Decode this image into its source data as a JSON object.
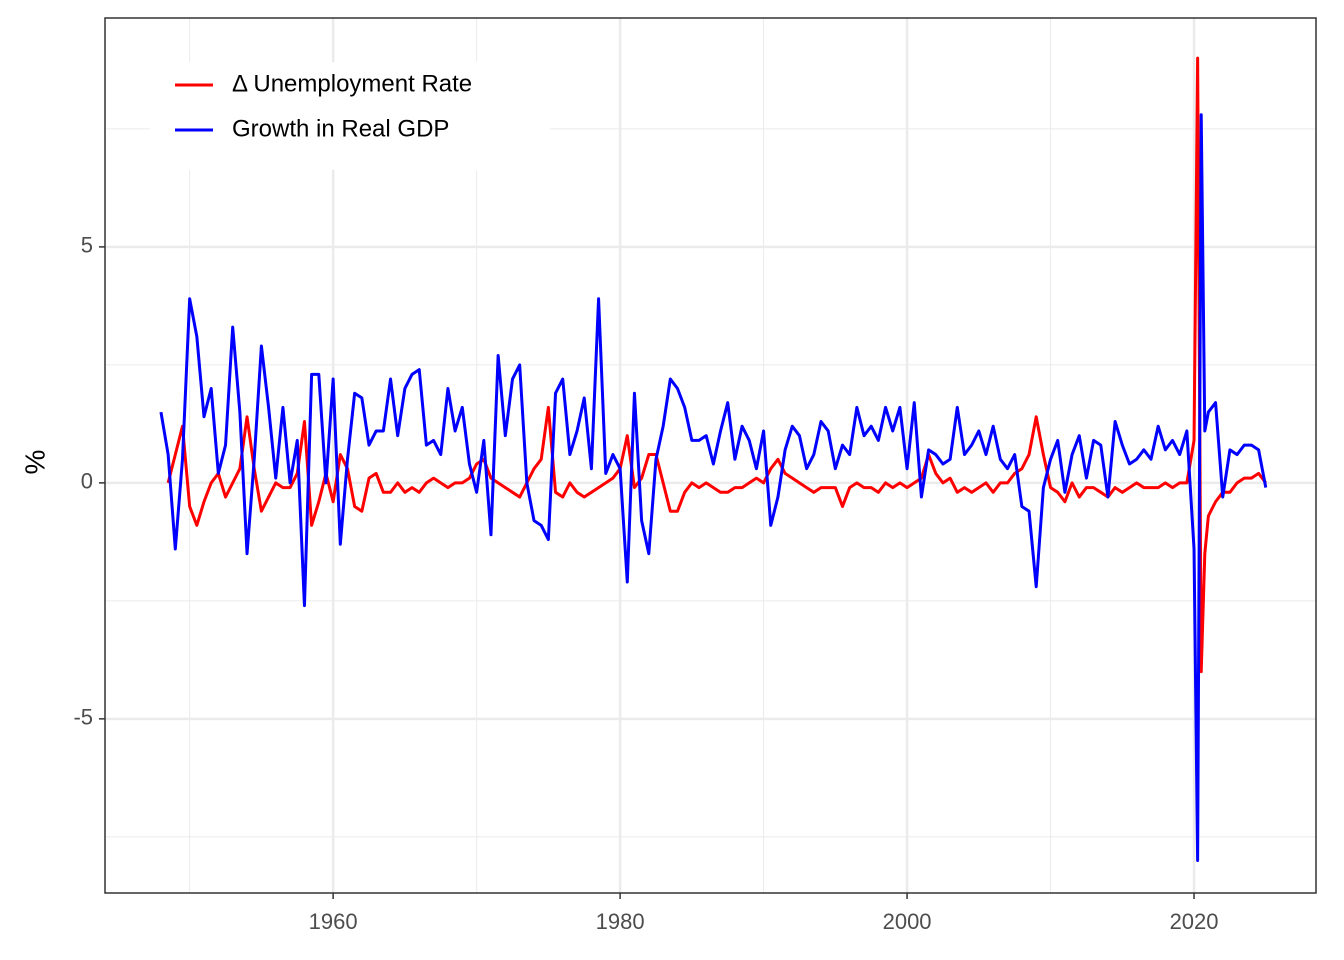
{
  "chart_data": {
    "type": "line",
    "ylabel": "%",
    "x": [
      1948.0,
      1948.5,
      1949.0,
      1949.5,
      1950.0,
      1950.5,
      1951.0,
      1951.5,
      1952.0,
      1952.5,
      1953.0,
      1953.5,
      1954.0,
      1954.5,
      1955.0,
      1955.5,
      1956.0,
      1956.5,
      1957.0,
      1957.5,
      1958.0,
      1958.5,
      1959.0,
      1959.5,
      1960.0,
      1960.5,
      1961.0,
      1961.5,
      1962.0,
      1962.5,
      1963.0,
      1963.5,
      1964.0,
      1964.5,
      1965.0,
      1965.5,
      1966.0,
      1966.5,
      1967.0,
      1967.5,
      1968.0,
      1968.5,
      1969.0,
      1969.5,
      1970.0,
      1970.5,
      1971.0,
      1971.5,
      1972.0,
      1972.5,
      1973.0,
      1973.5,
      1974.0,
      1974.5,
      1975.0,
      1975.5,
      1976.0,
      1976.5,
      1977.0,
      1977.5,
      1978.0,
      1978.5,
      1979.0,
      1979.5,
      1980.0,
      1980.5,
      1981.0,
      1981.5,
      1982.0,
      1982.5,
      1983.0,
      1983.5,
      1984.0,
      1984.5,
      1985.0,
      1985.5,
      1986.0,
      1986.5,
      1987.0,
      1987.5,
      1988.0,
      1988.5,
      1989.0,
      1989.5,
      1990.0,
      1990.5,
      1991.0,
      1991.5,
      1992.0,
      1992.5,
      1993.0,
      1993.5,
      1994.0,
      1994.5,
      1995.0,
      1995.5,
      1996.0,
      1996.5,
      1997.0,
      1997.5,
      1998.0,
      1998.5,
      1999.0,
      1999.5,
      2000.0,
      2000.5,
      2001.0,
      2001.5,
      2002.0,
      2002.5,
      2003.0,
      2003.5,
      2004.0,
      2004.5,
      2005.0,
      2005.5,
      2006.0,
      2006.5,
      2007.0,
      2007.5,
      2008.0,
      2008.5,
      2009.0,
      2009.5,
      2010.0,
      2010.5,
      2011.0,
      2011.5,
      2012.0,
      2012.5,
      2013.0,
      2013.5,
      2014.0,
      2014.5,
      2015.0,
      2015.5,
      2016.0,
      2016.5,
      2017.0,
      2017.5,
      2018.0,
      2018.5,
      2019.0,
      2019.5,
      2020.0,
      2020.25,
      2020.5,
      2020.75,
      2021.0,
      2021.5,
      2022.0,
      2022.5,
      2023.0,
      2023.5,
      2024.0,
      2024.5,
      2025.0
    ],
    "series": [
      {
        "name": "Δ Unemployment Rate",
        "color": "#ff0000",
        "values": [
          null,
          0.0,
          0.6,
          1.2,
          -0.5,
          -0.9,
          -0.4,
          0.0,
          0.2,
          -0.3,
          0.0,
          0.3,
          1.4,
          0.3,
          -0.6,
          -0.3,
          0.0,
          -0.1,
          -0.1,
          0.2,
          1.3,
          -0.9,
          -0.4,
          0.2,
          -0.4,
          0.6,
          0.3,
          -0.5,
          -0.6,
          0.1,
          0.2,
          -0.2,
          -0.2,
          0.0,
          -0.2,
          -0.1,
          -0.2,
          0.0,
          0.1,
          0.0,
          -0.1,
          0.0,
          0.0,
          0.1,
          0.4,
          0.5,
          0.1,
          0.0,
          -0.1,
          -0.2,
          -0.3,
          0.0,
          0.3,
          0.5,
          1.6,
          -0.2,
          -0.3,
          0.0,
          -0.2,
          -0.3,
          -0.2,
          -0.1,
          0.0,
          0.1,
          0.3,
          1.0,
          -0.1,
          0.1,
          0.6,
          0.6,
          0.0,
          -0.6,
          -0.6,
          -0.2,
          0.0,
          -0.1,
          0.0,
          -0.1,
          -0.2,
          -0.2,
          -0.1,
          -0.1,
          0.0,
          0.1,
          0.0,
          0.3,
          0.5,
          0.2,
          0.1,
          0.0,
          -0.1,
          -0.2,
          -0.1,
          -0.1,
          -0.1,
          -0.5,
          -0.1,
          0.0,
          -0.1,
          -0.1,
          -0.2,
          0.0,
          -0.1,
          0.0,
          -0.1,
          0.0,
          0.1,
          0.6,
          0.2,
          0.0,
          0.1,
          -0.2,
          -0.1,
          -0.2,
          -0.1,
          0.0,
          -0.2,
          0.0,
          0.0,
          0.2,
          0.3,
          0.6,
          1.4,
          0.6,
          -0.1,
          -0.2,
          -0.4,
          0.0,
          -0.3,
          -0.1,
          -0.1,
          -0.2,
          -0.3,
          -0.1,
          -0.2,
          -0.1,
          0.0,
          -0.1,
          -0.1,
          -0.1,
          0.0,
          -0.1,
          0.0,
          0.0,
          0.9,
          9.0,
          -4.0,
          -1.5,
          -0.7,
          -0.4,
          -0.2,
          -0.2,
          0.0,
          0.1,
          0.1,
          0.2,
          0.0
        ]
      },
      {
        "name": "Growth in Real GDP",
        "color": "#0000ff",
        "values": [
          1.5,
          0.6,
          -1.4,
          0.5,
          3.9,
          3.1,
          1.4,
          2.0,
          0.2,
          0.8,
          3.3,
          1.5,
          -1.5,
          0.5,
          2.9,
          1.6,
          0.1,
          1.6,
          0.0,
          0.9,
          -2.6,
          2.3,
          2.3,
          0.0,
          2.2,
          -1.3,
          0.5,
          1.9,
          1.8,
          0.8,
          1.1,
          1.1,
          2.2,
          1.0,
          2.0,
          2.3,
          2.4,
          0.8,
          0.9,
          0.6,
          2.0,
          1.1,
          1.6,
          0.4,
          -0.2,
          0.9,
          -1.1,
          2.7,
          1.0,
          2.2,
          2.5,
          0.0,
          -0.8,
          -0.9,
          -1.2,
          1.9,
          2.2,
          0.6,
          1.1,
          1.8,
          0.3,
          3.9,
          0.2,
          0.6,
          0.3,
          -2.1,
          1.9,
          -0.8,
          -1.5,
          0.5,
          1.2,
          2.2,
          2.0,
          1.6,
          0.9,
          0.9,
          1.0,
          0.4,
          1.1,
          1.7,
          0.5,
          1.2,
          0.9,
          0.3,
          1.1,
          -0.9,
          -0.3,
          0.7,
          1.2,
          1.0,
          0.3,
          0.6,
          1.3,
          1.1,
          0.3,
          0.8,
          0.6,
          1.6,
          1.0,
          1.2,
          0.9,
          1.6,
          1.1,
          1.6,
          0.3,
          1.7,
          -0.3,
          0.7,
          0.6,
          0.4,
          0.5,
          1.6,
          0.6,
          0.8,
          1.1,
          0.6,
          1.2,
          0.5,
          0.3,
          0.6,
          -0.5,
          -0.6,
          -2.2,
          -0.1,
          0.5,
          0.9,
          -0.2,
          0.6,
          1.0,
          0.1,
          0.9,
          0.8,
          -0.3,
          1.3,
          0.8,
          0.4,
          0.5,
          0.7,
          0.5,
          1.2,
          0.7,
          0.9,
          0.6,
          1.1,
          -1.4,
          -8.0,
          7.8,
          1.1,
          1.5,
          1.7,
          -0.3,
          0.7,
          0.6,
          0.8,
          0.8,
          0.7,
          -0.1
        ]
      }
    ],
    "xlim": [
      1944.1,
      2028.5
    ],
    "ylim": [
      -8.69,
      9.85
    ],
    "xticks": [
      1960,
      1980,
      2000,
      2020
    ],
    "yticks": [
      -5,
      0,
      5
    ],
    "xminor": [
      1950,
      1970,
      1990,
      2010
    ],
    "yminor": [
      -7.5,
      -2.5,
      2.5,
      7.5
    ],
    "grid": true,
    "legend": "top-left"
  }
}
